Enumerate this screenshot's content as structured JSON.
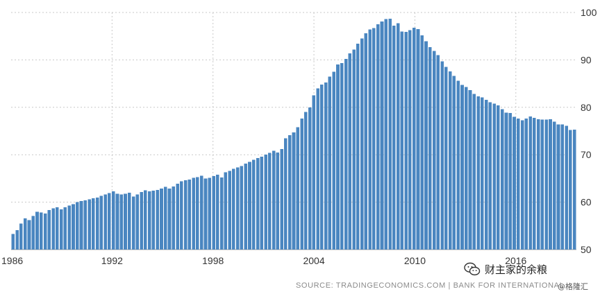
{
  "chart_data": {
    "type": "bar",
    "title": "",
    "xlabel": "",
    "ylabel": "",
    "x_start": 1986,
    "x_step": 0.25,
    "ylim": [
      50,
      100
    ],
    "y_ticks": [
      50,
      60,
      70,
      80,
      90,
      100
    ],
    "x_ticks": [
      "1986",
      "1992",
      "1998",
      "2004",
      "2010",
      "2016"
    ],
    "grid": true,
    "bar_color": "#4a86c0",
    "values": [
      53.3,
      54.1,
      55.5,
      56.6,
      56.2,
      57.1,
      58.0,
      57.8,
      57.6,
      58.3,
      58.7,
      58.9,
      58.5,
      58.9,
      59.3,
      59.6,
      60.0,
      60.2,
      60.4,
      60.6,
      60.8,
      61.0,
      61.3,
      61.6,
      61.9,
      62.3,
      61.8,
      61.6,
      61.8,
      62.0,
      61.2,
      61.6,
      62.1,
      62.5,
      62.3,
      62.4,
      62.6,
      62.9,
      63.2,
      62.9,
      63.3,
      63.9,
      64.4,
      64.6,
      64.8,
      65.1,
      65.3,
      65.6,
      65.0,
      65.1,
      65.5,
      65.8,
      65.2,
      66.3,
      66.6,
      67.0,
      67.3,
      67.6,
      68.1,
      68.5,
      68.9,
      69.3,
      69.6,
      70.0,
      70.4,
      70.8,
      70.5,
      71.2,
      73.5,
      74.1,
      74.7,
      75.8,
      77.6,
      79.0,
      80.0,
      82.5,
      84.0,
      84.8,
      85.2,
      86.5,
      87.5,
      89.0,
      89.3,
      90.2,
      91.4,
      92.2,
      93.4,
      94.5,
      95.6,
      96.4,
      96.7,
      97.5,
      98.1,
      98.6,
      98.7,
      97.2,
      97.7,
      96.0,
      95.9,
      96.3,
      96.8,
      96.5,
      95.2,
      93.9,
      92.7,
      91.9,
      91.0,
      89.7,
      88.5,
      87.6,
      86.6,
      85.6,
      84.7,
      84.3,
      83.6,
      82.8,
      82.3,
      82.1,
      81.6,
      81.1,
      80.8,
      80.4,
      79.6,
      78.9,
      78.8,
      78.0,
      77.6,
      77.3,
      77.6,
      78.1,
      77.8,
      77.5,
      77.4,
      77.4,
      77.5,
      77.0,
      76.4,
      76.4,
      76.1,
      75.2,
      75.3
    ]
  },
  "footer": {
    "source": "SOURCE: TRADINGECONOMICS.COM  |  BANK FOR INTERNATIONAL SETTLEMENTS"
  },
  "watermark": {
    "text": "财主家的余粮",
    "sub": "@格隆汇",
    "icon": "wechat-icon"
  }
}
